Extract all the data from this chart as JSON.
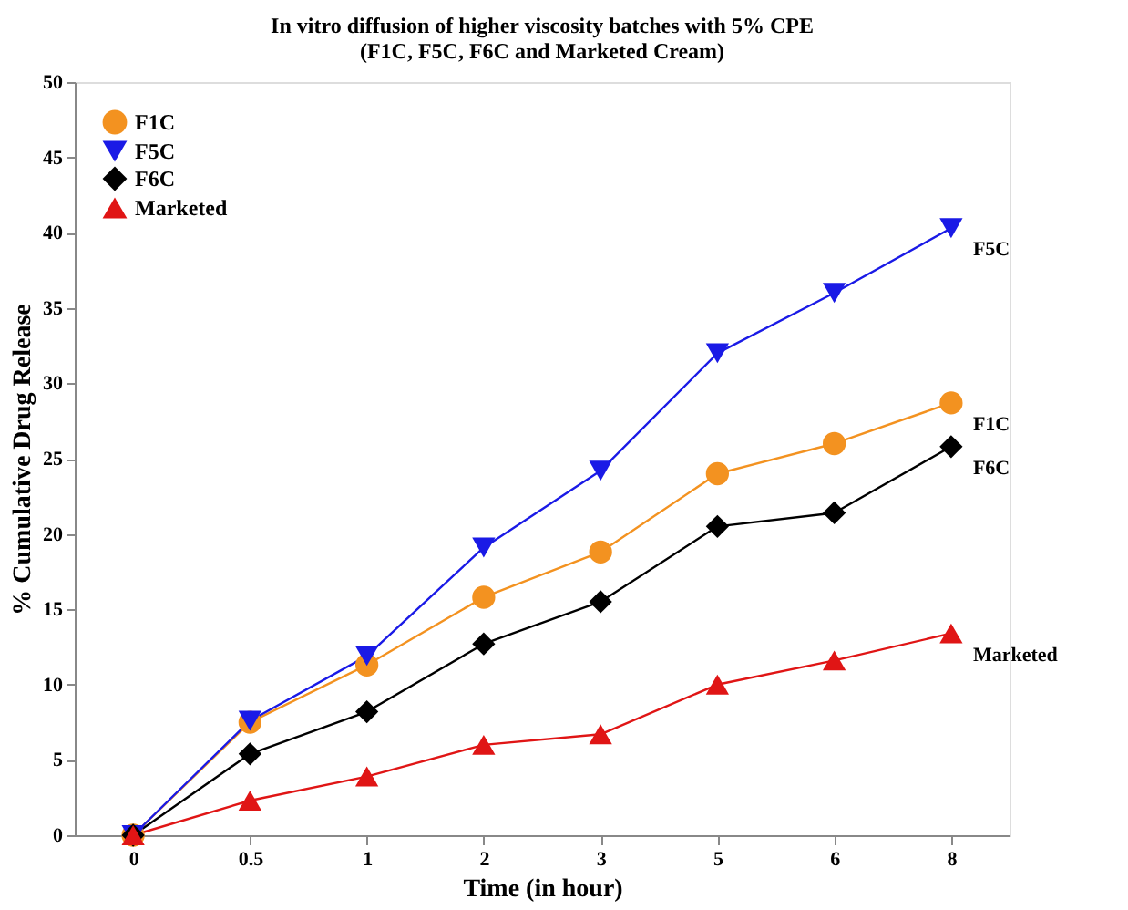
{
  "chart_data": {
    "type": "line",
    "title": "In vitro diffusion of higher viscosity batches with 5% CPE\n(F1C, F5C, F6C and Marketed Cream)",
    "xlabel": "Time (in hour)",
    "ylabel": "% Cumulative Drug Release",
    "categories": [
      "0",
      "0.5",
      "1",
      "2",
      "3",
      "5",
      "6",
      "8"
    ],
    "series": [
      {
        "name": "F1C",
        "color": "#f39220",
        "marker": "circle",
        "values": [
          0,
          7.5,
          11.3,
          15.8,
          18.8,
          24.0,
          26.0,
          28.7
        ]
      },
      {
        "name": "F5C",
        "color": "#1a1ae6",
        "marker": "triangle_down",
        "values": [
          0,
          7.6,
          11.9,
          19.1,
          24.2,
          32.0,
          36.0,
          40.3
        ]
      },
      {
        "name": "F6C",
        "color": "#000000",
        "marker": "diamond",
        "values": [
          0,
          5.4,
          8.2,
          12.7,
          15.5,
          20.5,
          21.4,
          25.8
        ]
      },
      {
        "name": "Marketed",
        "color": "#e01515",
        "marker": "triangle",
        "values": [
          0,
          2.3,
          3.9,
          6.0,
          6.7,
          10.0,
          11.6,
          13.4
        ]
      }
    ],
    "ylim": [
      0,
      50
    ],
    "yticks": [
      0,
      5,
      10,
      15,
      20,
      25,
      30,
      35,
      40,
      45,
      50
    ],
    "grid": false,
    "legend": "top left",
    "line_style": "solid"
  }
}
